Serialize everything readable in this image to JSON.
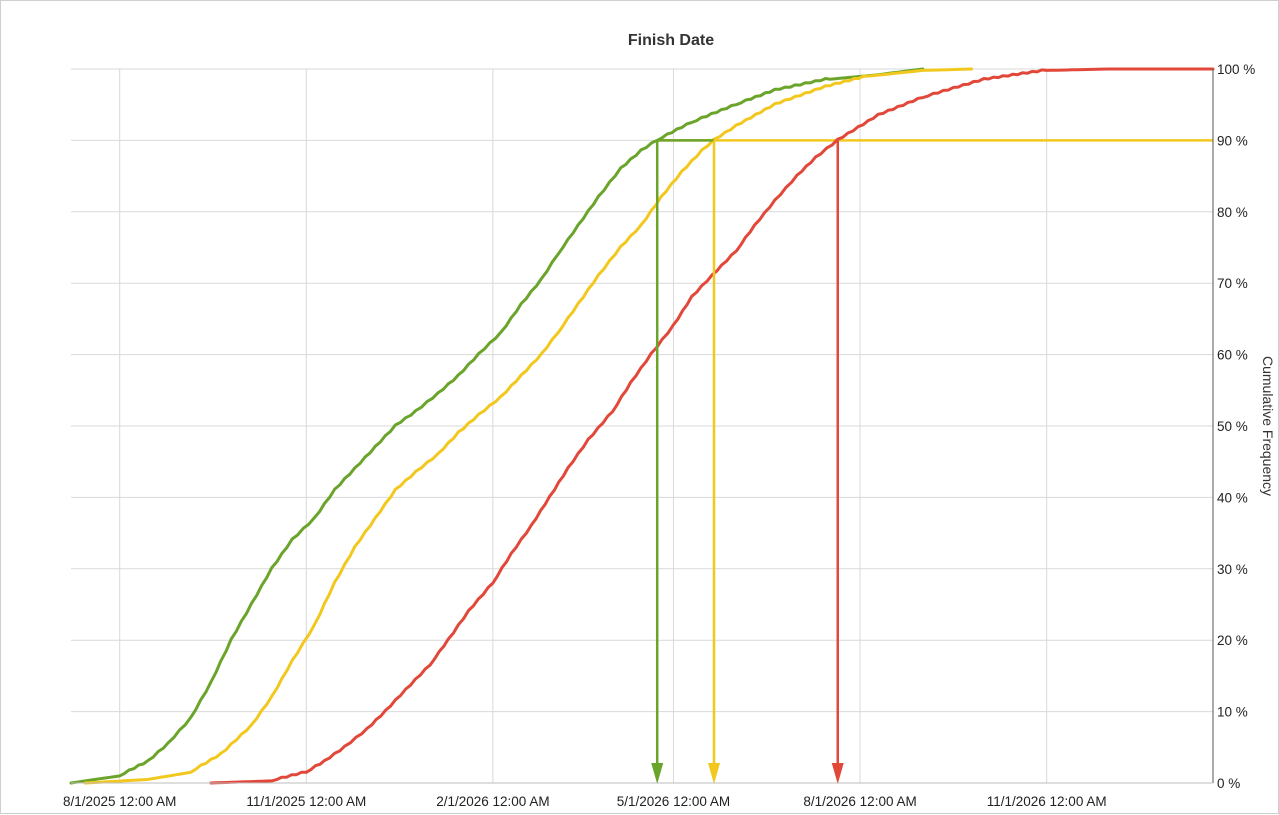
{
  "chart_data": {
    "type": "line",
    "title": "Finish Date",
    "xlabel": "",
    "ylabel": "Cumulative Frequency",
    "x_axis": {
      "type": "date",
      "tick_labels": [
        "8/1/2025 12:00 AM",
        "11/1/2025 12:00 AM",
        "2/1/2026 12:00 AM",
        "5/1/2026 12:00 AM",
        "8/1/2026 12:00 AM",
        "11/1/2026 12:00 AM"
      ],
      "tick_dates": [
        "2025-08-01",
        "2025-11-01",
        "2026-02-01",
        "2026-05-01",
        "2026-08-01",
        "2026-11-01"
      ],
      "range": [
        "2025-07-08",
        "2027-01-22"
      ]
    },
    "y_axis": {
      "position": "right",
      "range": [
        0,
        100
      ],
      "tick_values": [
        0,
        10,
        20,
        30,
        40,
        50,
        60,
        70,
        80,
        90,
        100
      ],
      "tick_labels": [
        "0 %",
        "10 %",
        "20 %",
        "30 %",
        "40 %",
        "50 %",
        "60 %",
        "70 %",
        "80 %",
        "90 %",
        "100 %"
      ]
    },
    "grid": true,
    "legend": "none",
    "threshold": {
      "y": 90,
      "label": "90 %",
      "color": "#f2c81e"
    },
    "series": [
      {
        "color": "#6aa42a",
        "marker_date": "2026-04-23",
        "points": [
          [
            "2025-07-08",
            0
          ],
          [
            "2025-07-20",
            0.5
          ],
          [
            "2025-08-01",
            1
          ],
          [
            "2025-08-15",
            3
          ],
          [
            "2025-08-25",
            5.5
          ],
          [
            "2025-09-05",
            9
          ],
          [
            "2025-09-15",
            14
          ],
          [
            "2025-09-25",
            20
          ],
          [
            "2025-10-05",
            25
          ],
          [
            "2025-10-15",
            30
          ],
          [
            "2025-10-25",
            34
          ],
          [
            "2025-11-05",
            37
          ],
          [
            "2025-11-15",
            41
          ],
          [
            "2025-11-25",
            44
          ],
          [
            "2025-12-05",
            47
          ],
          [
            "2025-12-15",
            50
          ],
          [
            "2025-12-25",
            52
          ],
          [
            "2026-01-05",
            54.5
          ],
          [
            "2026-01-15",
            57
          ],
          [
            "2026-01-25",
            60
          ],
          [
            "2026-02-05",
            63
          ],
          [
            "2026-02-15",
            67
          ],
          [
            "2026-02-25",
            70.5
          ],
          [
            "2026-03-05",
            74
          ],
          [
            "2026-03-15",
            78
          ],
          [
            "2026-03-25",
            82
          ],
          [
            "2026-04-05",
            86
          ],
          [
            "2026-04-15",
            88.5
          ],
          [
            "2026-04-23",
            90
          ],
          [
            "2026-05-10",
            92.5
          ],
          [
            "2026-06-01",
            95
          ],
          [
            "2026-06-20",
            97
          ],
          [
            "2026-07-15",
            98.5
          ],
          [
            "2026-08-10",
            99.2
          ],
          [
            "2026-09-01",
            100
          ]
        ]
      },
      {
        "color": "#f2c81e",
        "marker_date": "2026-05-21",
        "points": [
          [
            "2025-07-15",
            0
          ],
          [
            "2025-08-15",
            0.5
          ],
          [
            "2025-09-05",
            1.5
          ],
          [
            "2025-09-20",
            4
          ],
          [
            "2025-10-05",
            8
          ],
          [
            "2025-10-15",
            12
          ],
          [
            "2025-10-25",
            17
          ],
          [
            "2025-11-05",
            22
          ],
          [
            "2025-11-15",
            28
          ],
          [
            "2025-11-25",
            33
          ],
          [
            "2025-12-05",
            37
          ],
          [
            "2025-12-15",
            41
          ],
          [
            "2025-12-25",
            43.5
          ],
          [
            "2026-01-05",
            46
          ],
          [
            "2026-01-15",
            49
          ],
          [
            "2026-01-25",
            51.5
          ],
          [
            "2026-02-05",
            54
          ],
          [
            "2026-02-15",
            57
          ],
          [
            "2026-02-25",
            60
          ],
          [
            "2026-03-05",
            63
          ],
          [
            "2026-03-15",
            67
          ],
          [
            "2026-03-25",
            71
          ],
          [
            "2026-04-05",
            75
          ],
          [
            "2026-04-15",
            78
          ],
          [
            "2026-04-25",
            82
          ],
          [
            "2026-05-05",
            85.5
          ],
          [
            "2026-05-15",
            88.5
          ],
          [
            "2026-05-21",
            90
          ],
          [
            "2026-06-01",
            92
          ],
          [
            "2026-06-20",
            95
          ],
          [
            "2026-07-15",
            97.5
          ],
          [
            "2026-08-05",
            99
          ],
          [
            "2026-09-01",
            99.8
          ],
          [
            "2026-09-25",
            100
          ]
        ]
      },
      {
        "color": "#e2483a",
        "marker_date": "2026-07-21",
        "points": [
          [
            "2025-09-15",
            0
          ],
          [
            "2025-10-15",
            0.3
          ],
          [
            "2025-11-01",
            1.5
          ],
          [
            "2025-11-10",
            3
          ],
          [
            "2025-11-20",
            5
          ],
          [
            "2025-12-01",
            7.5
          ],
          [
            "2025-12-10",
            10
          ],
          [
            "2025-12-20",
            13
          ],
          [
            "2026-01-01",
            16.5
          ],
          [
            "2026-01-10",
            20
          ],
          [
            "2026-01-20",
            24
          ],
          [
            "2026-02-01",
            28
          ],
          [
            "2026-02-10",
            32
          ],
          [
            "2026-02-20",
            36
          ],
          [
            "2026-03-01",
            40
          ],
          [
            "2026-03-10",
            44
          ],
          [
            "2026-03-20",
            48
          ],
          [
            "2026-04-01",
            52
          ],
          [
            "2026-04-10",
            56
          ],
          [
            "2026-04-20",
            60
          ],
          [
            "2026-05-01",
            64
          ],
          [
            "2026-05-10",
            68
          ],
          [
            "2026-05-20",
            71
          ],
          [
            "2026-06-01",
            74.5
          ],
          [
            "2026-06-10",
            78
          ],
          [
            "2026-06-20",
            81.5
          ],
          [
            "2026-07-01",
            85
          ],
          [
            "2026-07-10",
            87.5
          ],
          [
            "2026-07-21",
            90
          ],
          [
            "2026-08-10",
            93.5
          ],
          [
            "2026-09-01",
            96
          ],
          [
            "2026-10-01",
            98.5
          ],
          [
            "2026-11-01",
            99.8
          ],
          [
            "2026-12-01",
            100
          ],
          [
            "2027-01-22",
            100
          ]
        ]
      }
    ]
  }
}
